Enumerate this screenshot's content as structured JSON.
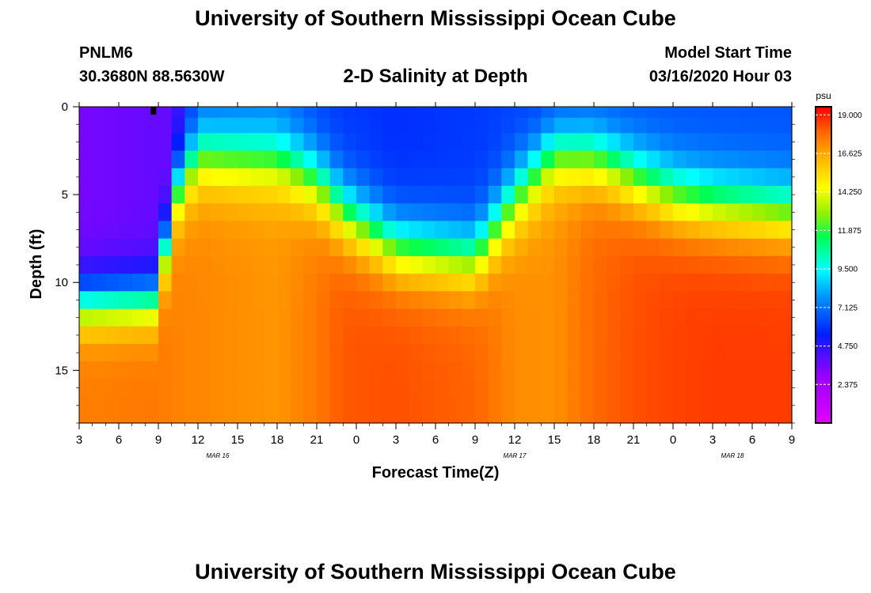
{
  "header": {
    "title_top": "University of Southern Mississippi Ocean Cube",
    "title_bottom": "University of Southern Mississippi Ocean Cube",
    "station_id": "PNLM6",
    "station_coords": "30.3680N 88.5630W",
    "model_start_label": "Model Start Time",
    "model_start_value": "03/16/2020 Hour 03"
  },
  "chart_data": {
    "type": "heatmap",
    "title": "2-D Salinity at Depth",
    "xlabel": "Forecast Time(Z)",
    "ylabel": "Depth (ft)",
    "x_range_hours_from_start": [
      0,
      54
    ],
    "y_range_ft": [
      0,
      18
    ],
    "y_inverted": true,
    "x_tick_labels": [
      "3",
      "6",
      "9",
      "12",
      "15",
      "18",
      "21",
      "0",
      "3",
      "6",
      "9",
      "12",
      "15",
      "18",
      "21",
      "0",
      "3",
      "6",
      "9"
    ],
    "y_tick_labels": [
      "0",
      "5",
      "10",
      "15"
    ],
    "y_ticks": [
      0,
      5,
      10,
      15
    ],
    "date_labels": [
      {
        "label": "MAR 16",
        "hour": 10.5
      },
      {
        "label": "MAR 17",
        "hour": 33
      },
      {
        "label": "MAR 18",
        "hour": 49.5
      }
    ],
    "colorbar": {
      "unit": "psu",
      "range": [
        0,
        19.5
      ],
      "tick_labels": [
        "19.000",
        "16.625",
        "14.250",
        "11.875",
        "9.500",
        "7.125",
        "4.750",
        "2.375"
      ],
      "ticks": [
        19.0,
        16.625,
        14.25,
        11.875,
        9.5,
        7.125,
        4.75,
        2.375
      ]
    },
    "columns": 54,
    "rows": 18,
    "depth_profiles": {
      "layers_ft": [
        0.25,
        1,
        2,
        3,
        4,
        5,
        6,
        7,
        8,
        9,
        10,
        11,
        12,
        13,
        14,
        15,
        16,
        17
      ],
      "keyframes_hours": [
        0,
        6,
        7,
        9,
        15,
        18,
        20,
        24,
        30,
        33,
        36,
        39,
        42,
        45,
        48,
        54
      ],
      "surface_psu": [
        3.5,
        3.8,
        3.8,
        6.5,
        7.0,
        6.2,
        6.0,
        5.8,
        6.0,
        6.2,
        6.0,
        6.3,
        6.5,
        6.5,
        6.5,
        6.5
      ],
      "bottom_psu": [
        17.5,
        17.6,
        17.4,
        17.3,
        17.0,
        17.6,
        18.2,
        18.3,
        18.0,
        17.2,
        17.1,
        17.9,
        18.3,
        18.5,
        18.6,
        18.6
      ],
      "halocline_ft": [
        11.2,
        11.0,
        5.3,
        2.7,
        3.0,
        4.2,
        6.0,
        8.0,
        8.6,
        5.2,
        2.6,
        2.8,
        4.0,
        5.0,
        5.5,
        6.0
      ],
      "transition_width_ft": [
        3.8,
        3.8,
        4.5,
        5.0,
        5.0,
        5.0,
        5.0,
        4.8,
        4.8,
        5.0,
        5.0,
        5.0,
        5.0,
        5.0,
        5.0,
        5.0
      ]
    },
    "marker": {
      "hour": 5.6,
      "depth_ft": 0.4
    }
  }
}
